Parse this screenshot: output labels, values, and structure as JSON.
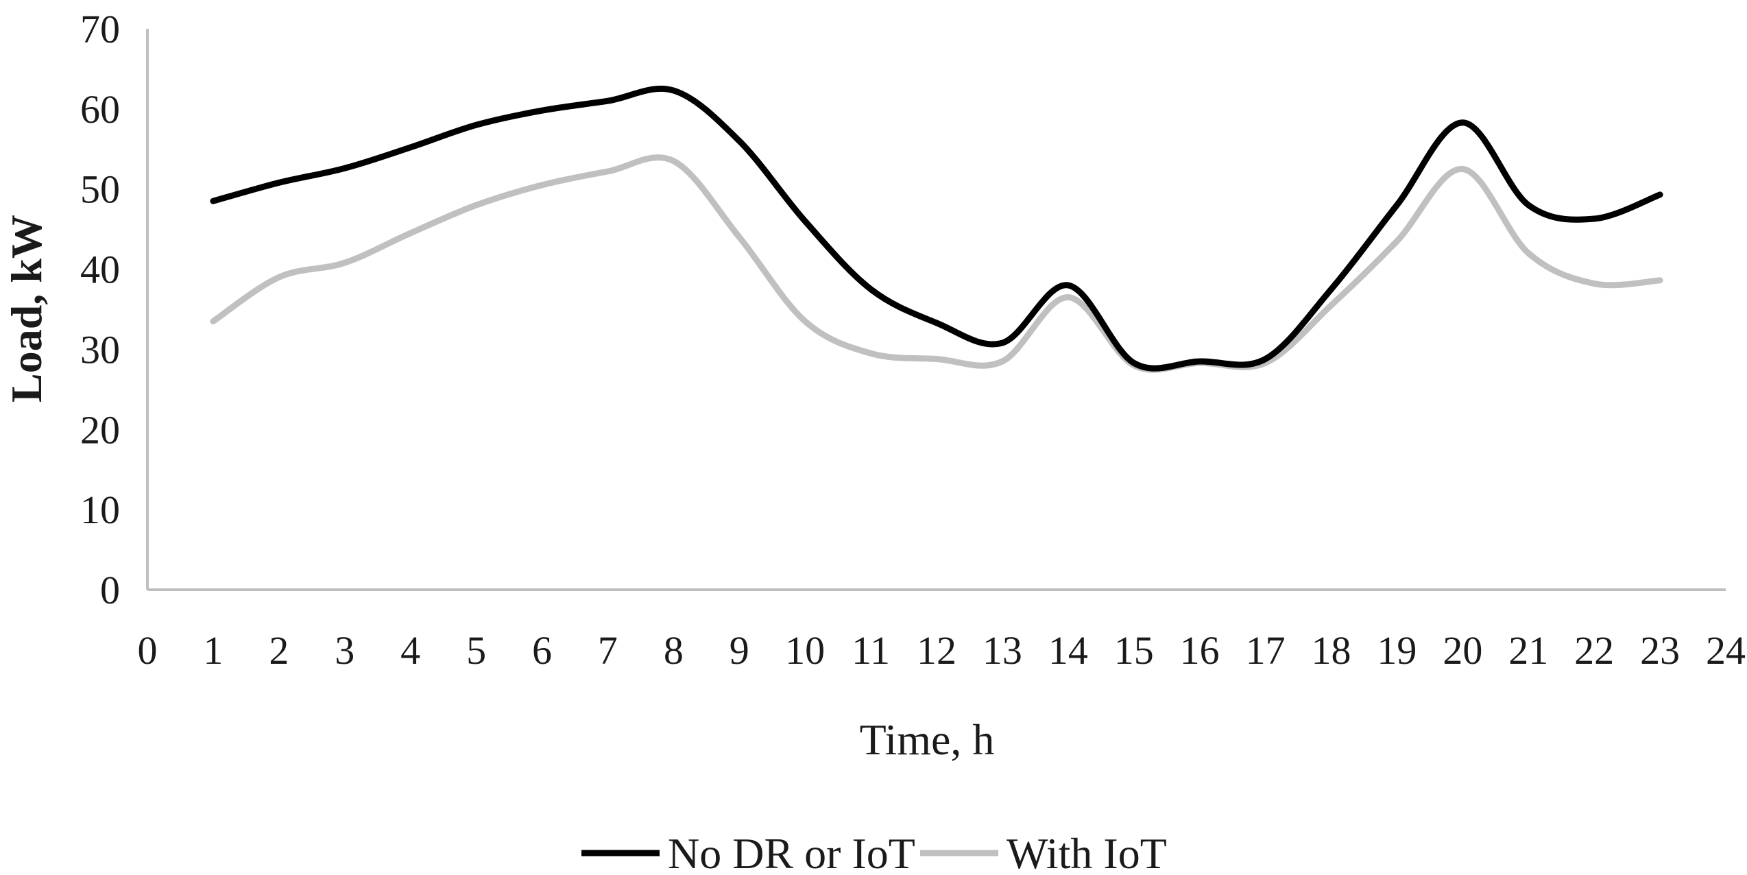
{
  "chart_data": {
    "type": "line",
    "title": "",
    "xlabel": "Time, h",
    "ylabel": "Load, kW",
    "xlim": [
      0,
      24
    ],
    "ylim": [
      0,
      70
    ],
    "x_ticks": [
      0,
      1,
      2,
      3,
      4,
      5,
      6,
      7,
      8,
      9,
      10,
      11,
      12,
      13,
      14,
      15,
      16,
      17,
      18,
      19,
      20,
      21,
      22,
      23,
      24
    ],
    "y_ticks": [
      0,
      10,
      20,
      30,
      40,
      50,
      60,
      70
    ],
    "grid": false,
    "legend_position": "bottom",
    "smooth": true,
    "x": [
      1,
      2,
      3,
      4,
      5,
      6,
      7,
      8,
      9,
      10,
      11,
      12,
      13,
      14,
      15,
      16,
      17,
      18,
      19,
      20,
      21,
      22,
      23
    ],
    "series": [
      {
        "name": "No DR or IoT",
        "color": "#000000",
        "values": [
          48.5,
          50.8,
          52.6,
          55.2,
          58,
          59.8,
          61,
          62.3,
          56,
          46,
          37.5,
          33.3,
          30.8,
          38,
          28.3,
          28.5,
          28.8,
          37.5,
          48,
          58.3,
          48,
          46.3,
          49.3
        ]
      },
      {
        "name": "With IoT",
        "color": "#c0c0c0",
        "values": [
          33.5,
          39,
          40.8,
          44.5,
          48,
          50.5,
          52.2,
          53.5,
          44,
          33.5,
          29.5,
          28.8,
          28.5,
          36.5,
          28,
          28.3,
          28.3,
          35.5,
          43.5,
          52.5,
          42,
          38.2,
          38.6
        ]
      }
    ]
  }
}
